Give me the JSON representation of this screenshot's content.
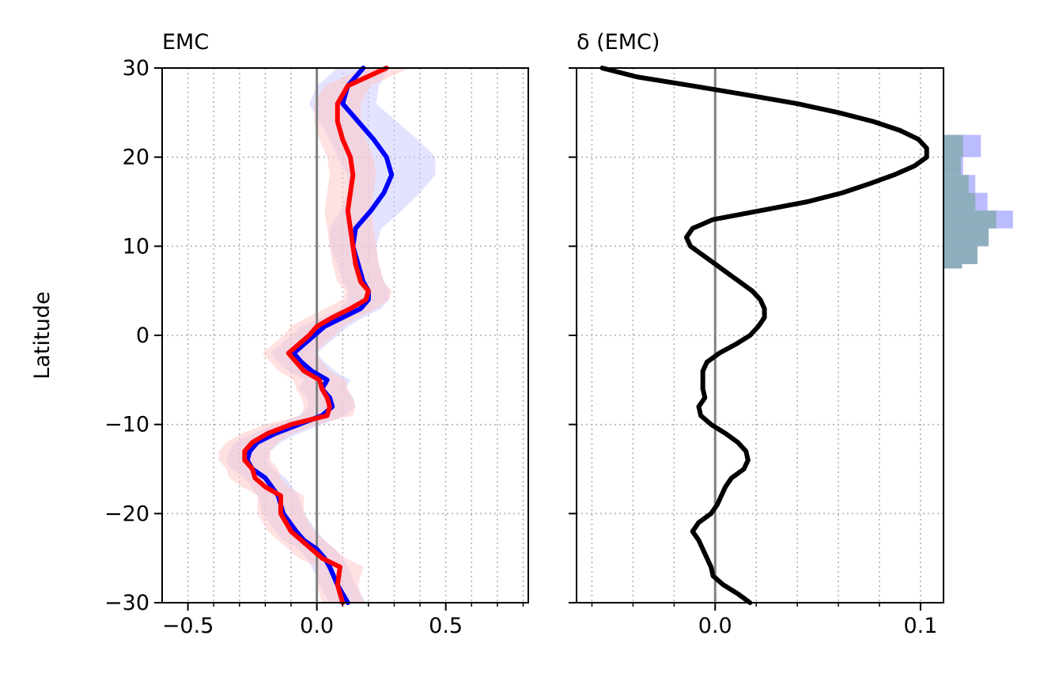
{
  "chart_data": [
    {
      "type": "line",
      "title": "EMC",
      "title_loc": "left",
      "ylabel": "Latitude",
      "xlabel": "",
      "xlim": [
        -0.6,
        0.82
      ],
      "ylim": [
        -30,
        30
      ],
      "xticks": [
        -0.5,
        0.0,
        0.5
      ],
      "xtick_labels": [
        "−0.5",
        "0.0",
        "0.5"
      ],
      "yticks": [
        30,
        20,
        10,
        0,
        -10,
        -20,
        -30
      ],
      "ytick_labels": [
        "30",
        "20",
        "10",
        "0",
        "−10",
        "−20",
        "−30"
      ],
      "grid": true,
      "zero_line": 0,
      "series": [
        {
          "color": "#0000ff",
          "band_color": "#ccccff",
          "y": [
            -30,
            -28,
            -26,
            -25,
            -24,
            -23,
            -22,
            -20,
            -18,
            -16,
            -15,
            -14,
            -13,
            -12,
            -11,
            -10,
            -9,
            -8,
            -7,
            -6,
            -5,
            -4,
            -3,
            -2,
            -1,
            0,
            1,
            2,
            3,
            4,
            5,
            6,
            8,
            10,
            12,
            14,
            16,
            18,
            20,
            22,
            24,
            26,
            28,
            30
          ],
          "x": [
            0.12,
            0.08,
            0.05,
            0.03,
            0.0,
            -0.05,
            -0.08,
            -0.13,
            -0.15,
            -0.2,
            -0.25,
            -0.27,
            -0.26,
            -0.23,
            -0.16,
            -0.07,
            0.02,
            0.06,
            0.05,
            0.02,
            0.04,
            -0.02,
            -0.06,
            -0.09,
            -0.05,
            -0.01,
            0.03,
            0.1,
            0.17,
            0.2,
            0.2,
            0.18,
            0.16,
            0.14,
            0.15,
            0.21,
            0.26,
            0.29,
            0.27,
            0.22,
            0.16,
            0.1,
            0.12,
            0.18
          ],
          "band": [
            0.07,
            0.07,
            0.07,
            0.07,
            0.07,
            0.08,
            0.08,
            0.08,
            0.08,
            0.08,
            0.08,
            0.08,
            0.08,
            0.09,
            0.09,
            0.09,
            0.09,
            0.09,
            0.09,
            0.09,
            0.09,
            0.09,
            0.09,
            0.09,
            0.09,
            0.09,
            0.09,
            0.08,
            0.08,
            0.08,
            0.08,
            0.08,
            0.08,
            0.09,
            0.1,
            0.12,
            0.14,
            0.17,
            0.19,
            0.17,
            0.15,
            0.13,
            0.12,
            0.1
          ]
        },
        {
          "color": "#ff0000",
          "band_color": "#ffc8c8",
          "y": [
            -30,
            -28,
            -26,
            -25,
            -24,
            -23,
            -22,
            -20,
            -18,
            -17,
            -16,
            -15,
            -14,
            -13,
            -12,
            -11,
            -10,
            -9,
            -8,
            -7,
            -6,
            -5,
            -4,
            -3,
            -2,
            -1,
            0,
            1,
            2,
            3,
            4,
            5,
            6,
            8,
            10,
            12,
            14,
            16,
            18,
            20,
            22,
            24,
            26,
            28,
            30
          ],
          "x": [
            0.1,
            0.08,
            0.09,
            0.02,
            -0.02,
            -0.06,
            -0.1,
            -0.14,
            -0.14,
            -0.2,
            -0.24,
            -0.25,
            -0.28,
            -0.28,
            -0.25,
            -0.19,
            -0.1,
            0.04,
            0.05,
            0.04,
            0.02,
            0.01,
            -0.05,
            -0.08,
            -0.11,
            -0.07,
            -0.03,
            0.0,
            0.06,
            0.13,
            0.19,
            0.2,
            0.17,
            0.15,
            0.14,
            0.13,
            0.12,
            0.13,
            0.14,
            0.13,
            0.1,
            0.08,
            0.08,
            0.12,
            0.27
          ],
          "band": [
            0.08,
            0.08,
            0.09,
            0.09,
            0.09,
            0.09,
            0.09,
            0.09,
            0.09,
            0.09,
            0.1,
            0.1,
            0.1,
            0.1,
            0.1,
            0.1,
            0.1,
            0.1,
            0.1,
            0.1,
            0.1,
            0.1,
            0.1,
            0.1,
            0.1,
            0.1,
            0.1,
            0.1,
            0.1,
            0.1,
            0.09,
            0.09,
            0.09,
            0.09,
            0.09,
            0.09,
            0.09,
            0.09,
            0.09,
            0.09,
            0.09,
            0.09,
            0.09,
            0.09,
            0.09
          ]
        }
      ]
    },
    {
      "type": "line",
      "title": "δ (EMC)",
      "title_loc": "left",
      "xlabel": "",
      "ylabel": "",
      "xlim": [
        -0.0675,
        0.1112
      ],
      "ylim": [
        -30,
        30
      ],
      "xticks": [
        0.0,
        0.1
      ],
      "xtick_labels": [
        "0.0",
        "0.1"
      ],
      "yticks": [
        30,
        20,
        10,
        0,
        -10,
        -20,
        -30
      ],
      "ytick_labels": [],
      "grid": true,
      "zero_line": 0,
      "series": [
        {
          "color": "#000000",
          "y": [
            -30,
            -29,
            -28,
            -27,
            -26,
            -25,
            -24,
            -23,
            -22,
            -21,
            -20,
            -19,
            -18,
            -17,
            -16,
            -15,
            -14,
            -13,
            -12,
            -11,
            -10,
            -9,
            -8,
            -7,
            -6,
            -5,
            -4,
            -3,
            -2,
            -1,
            0,
            1,
            2,
            3,
            4,
            5,
            6,
            7,
            8,
            9,
            10,
            11,
            12,
            13,
            14,
            15,
            16,
            17,
            18,
            19,
            20,
            21,
            22,
            23,
            24,
            25,
            26,
            27,
            28,
            29,
            30
          ],
          "x": [
            0.017,
            0.011,
            0.004,
            -0.001,
            -0.002,
            -0.004,
            -0.006,
            -0.008,
            -0.011,
            -0.008,
            -0.002,
            0.001,
            0.003,
            0.005,
            0.008,
            0.014,
            0.016,
            0.015,
            0.011,
            0.005,
            -0.002,
            -0.007,
            -0.008,
            -0.005,
            -0.006,
            -0.006,
            -0.006,
            -0.004,
            0.002,
            0.01,
            0.017,
            0.021,
            0.024,
            0.024,
            0.022,
            0.018,
            0.012,
            0.006,
            0.0,
            -0.006,
            -0.012,
            -0.014,
            -0.011,
            -0.001,
            0.022,
            0.045,
            0.062,
            0.075,
            0.087,
            0.097,
            0.103,
            0.103,
            0.099,
            0.09,
            0.077,
            0.06,
            0.04,
            0.015,
            -0.011,
            -0.038,
            -0.055
          ]
        }
      ]
    },
    {
      "type": "bar",
      "orientation": "horizontal",
      "ylim": [
        -30,
        30
      ],
      "series": [
        {
          "color": "#bbbbff",
          "bins": [
            [
              20,
              22.5
            ],
            [
              18,
              20
            ],
            [
              16,
              18
            ],
            [
              14,
              16
            ],
            [
              12,
              14
            ],
            [
              10,
              12
            ],
            [
              8,
              10
            ],
            [
              7.5,
              8
            ]
          ],
          "counts": [
            33,
            17,
            28,
            39,
            62,
            40,
            30,
            16
          ]
        },
        {
          "color": "#8eaebe",
          "bins": [
            [
              20,
              22.5
            ],
            [
              18,
              20
            ],
            [
              16,
              18
            ],
            [
              14,
              16
            ],
            [
              12,
              14
            ],
            [
              10,
              12
            ],
            [
              8,
              10
            ],
            [
              7.5,
              8
            ]
          ],
          "counts": [
            17,
            15,
            22,
            28,
            47,
            40,
            30,
            16
          ]
        }
      ]
    }
  ]
}
